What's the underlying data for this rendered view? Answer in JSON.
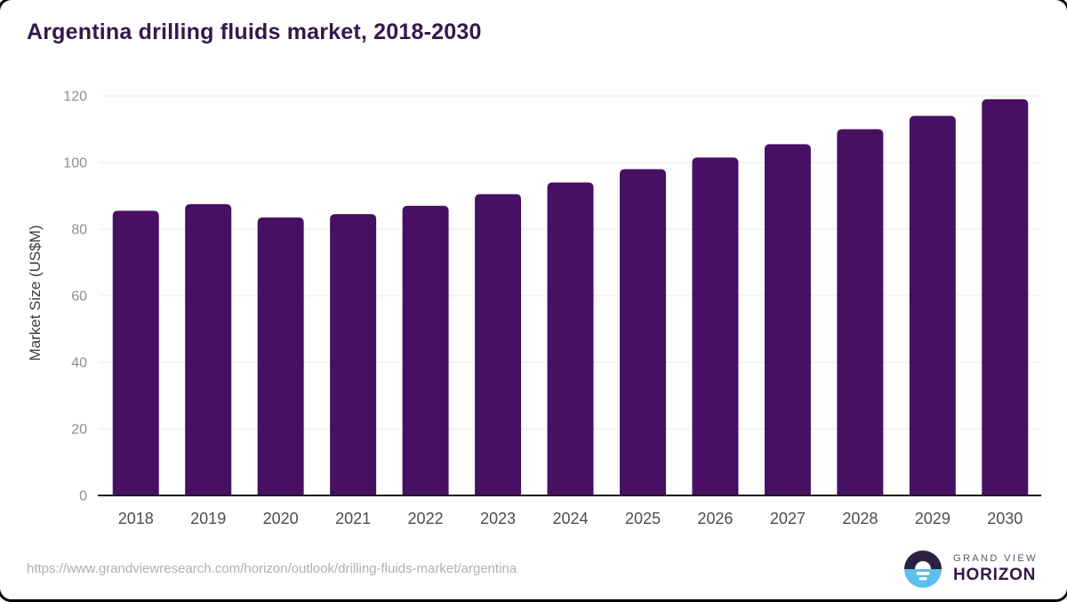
{
  "title": "Argentina drilling fluids market, 2018-2030",
  "chart_data": {
    "type": "bar",
    "categories": [
      "2018",
      "2019",
      "2020",
      "2021",
      "2022",
      "2023",
      "2024",
      "2025",
      "2026",
      "2027",
      "2028",
      "2029",
      "2030"
    ],
    "values": [
      85.5,
      87.5,
      83.5,
      84.5,
      87,
      90.5,
      94,
      98,
      101.5,
      105.5,
      110,
      114,
      119
    ],
    "title": "Argentina drilling fluids market, 2018-2030",
    "xlabel": "",
    "ylabel": "Market Size (US$M)",
    "ylim": [
      0,
      120
    ],
    "yticks": [
      0,
      20,
      40,
      60,
      80,
      100,
      120
    ],
    "grid": true,
    "legend_position": "none",
    "bar_color": "#481063",
    "gridline_color": "#ebebeb",
    "axis_line_color": "#1a1a1a",
    "ytick_label_color": "#8f8f8f",
    "xtick_label_color": "#4d4d4d",
    "ylabel_color": "#3d3d3d"
  },
  "footer": {
    "source_url": "https://www.grandviewresearch.com/horizon/outlook/drilling-fluids-market/argentina",
    "brand_top": "GRAND VIEW",
    "brand_bottom": "HORIZON",
    "logo_dark_color": "#2b2142",
    "logo_blue_color": "#5ac0ef"
  }
}
